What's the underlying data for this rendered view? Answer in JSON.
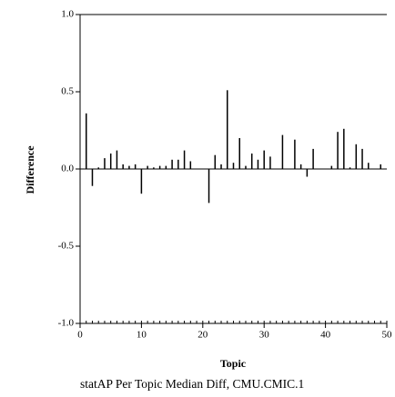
{
  "chart_data": {
    "type": "bar",
    "title": "statAP Per Topic Median Diff, CMU.CMIC.1",
    "x_label": "Topic",
    "y_label": "Difference",
    "x": [
      1,
      2,
      3,
      4,
      5,
      6,
      7,
      8,
      9,
      10,
      11,
      12,
      13,
      14,
      15,
      16,
      17,
      18,
      19,
      20,
      21,
      22,
      23,
      24,
      25,
      26,
      27,
      28,
      29,
      30,
      31,
      32,
      33,
      34,
      35,
      36,
      37,
      38,
      39,
      40,
      41,
      42,
      43,
      44,
      45,
      46,
      47,
      48,
      49,
      50
    ],
    "values": [
      0.36,
      -0.11,
      0.01,
      0.07,
      0.1,
      0.12,
      0.03,
      0.02,
      0.03,
      -0.16,
      0.02,
      0.01,
      0.02,
      0.02,
      0.06,
      0.06,
      0.12,
      0.05,
      0,
      0,
      -0.22,
      0.09,
      0.03,
      0.51,
      0.04,
      0.2,
      0.02,
      0.1,
      0.06,
      0.12,
      0.08,
      0,
      0.22,
      0,
      0.19,
      0.03,
      -0.05,
      0.13,
      0,
      0,
      0.02,
      0.24,
      0.26,
      0.01,
      0.16,
      0.13,
      0.04,
      0,
      0.03,
      0
    ],
    "color": "#000000",
    "xlim": [
      0,
      50
    ],
    "xticks": [
      0,
      10,
      20,
      30,
      40,
      50
    ],
    "ylim": [
      -1,
      1
    ],
    "yticks": [
      {
        "value": -1,
        "label": "-1.0"
      },
      -0.5,
      {
        "value": 0,
        "label": "0.0"
      },
      0.5,
      {
        "value": 1,
        "label": "1.0"
      }
    ]
  }
}
